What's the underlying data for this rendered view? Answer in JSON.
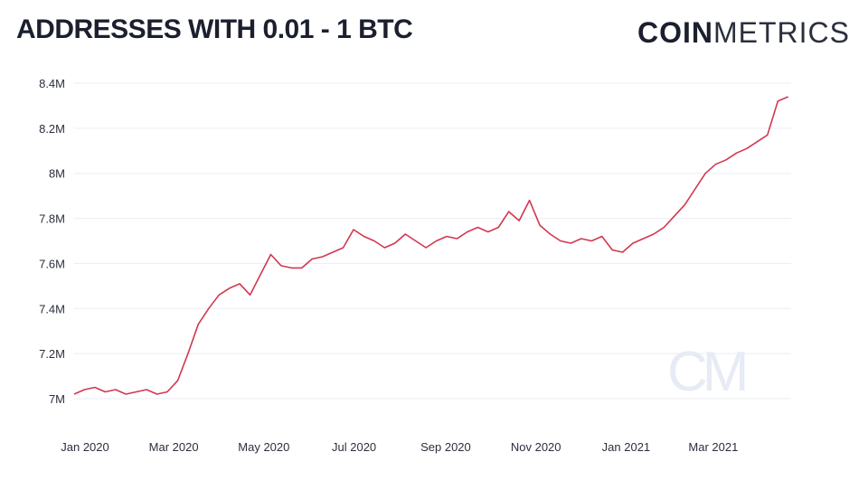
{
  "header": {
    "title": "ADDRESSES WITH 0.01 - 1 BTC",
    "brand_bold": "COIN",
    "brand_light": "METRICS",
    "watermark": "CM"
  },
  "colors": {
    "line": "#d23750",
    "grid": "#ebedf2",
    "text": "#1b1f2e"
  },
  "chart_data": {
    "type": "line",
    "title": "ADDRESSES WITH 0.01 - 1 BTC",
    "xlabel": "",
    "ylabel": "",
    "ylim": [
      6.98,
      8.4
    ],
    "yticks": [
      7.0,
      7.2,
      7.4,
      7.6,
      7.8,
      8.0,
      8.2,
      8.4
    ],
    "ytick_labels": [
      "7M",
      "7.2M",
      "7.4M",
      "7.6M",
      "7.8M",
      "8M",
      "8.2M",
      "8.4M"
    ],
    "xticks": [
      "2020-01-01",
      "2020-03-01",
      "2020-05-01",
      "2020-07-01",
      "2020-09-01",
      "2020-11-01",
      "2021-01-01",
      "2021-03-01"
    ],
    "xtick_labels": [
      "Jan 2020",
      "Mar 2020",
      "May 2020",
      "Jul 2020",
      "Sep 2020",
      "Nov 2020",
      "Jan 2021",
      "Mar 2021"
    ],
    "grid": true,
    "series": [
      {
        "x": [
          "2020-01-01",
          "2020-01-08",
          "2020-01-15",
          "2020-01-22",
          "2020-01-29",
          "2020-02-05",
          "2020-02-12",
          "2020-02-19",
          "2020-02-26",
          "2020-03-04",
          "2020-03-11",
          "2020-03-18",
          "2020-03-25",
          "2020-04-01",
          "2020-04-08",
          "2020-04-15",
          "2020-04-22",
          "2020-04-29",
          "2020-05-06",
          "2020-05-13",
          "2020-05-20",
          "2020-05-27",
          "2020-06-03",
          "2020-06-10",
          "2020-06-17",
          "2020-06-24",
          "2020-07-01",
          "2020-07-08",
          "2020-07-15",
          "2020-07-22",
          "2020-07-29",
          "2020-08-05",
          "2020-08-12",
          "2020-08-19",
          "2020-08-26",
          "2020-09-02",
          "2020-09-09",
          "2020-09-16",
          "2020-09-23",
          "2020-09-30",
          "2020-10-07",
          "2020-10-14",
          "2020-10-21",
          "2020-10-28",
          "2020-11-04",
          "2020-11-11",
          "2020-11-18",
          "2020-11-25",
          "2020-12-02",
          "2020-12-09",
          "2020-12-16",
          "2020-12-23",
          "2020-12-30",
          "2021-01-06",
          "2021-01-13",
          "2021-01-20",
          "2021-01-27",
          "2021-02-03",
          "2021-02-10",
          "2021-02-17",
          "2021-02-24",
          "2021-03-03",
          "2021-03-10",
          "2021-03-17",
          "2021-03-24",
          "2021-03-31",
          "2021-04-07",
          "2021-04-14",
          "2021-04-21",
          "2021-04-28"
        ],
        "values": [
          7.02,
          7.04,
          7.05,
          7.03,
          7.04,
          7.02,
          7.03,
          7.04,
          7.02,
          7.03,
          7.08,
          7.2,
          7.33,
          7.4,
          7.46,
          7.49,
          7.51,
          7.46,
          7.55,
          7.64,
          7.59,
          7.58,
          7.58,
          7.62,
          7.63,
          7.65,
          7.67,
          7.75,
          7.72,
          7.7,
          7.67,
          7.69,
          7.73,
          7.7,
          7.67,
          7.7,
          7.72,
          7.71,
          7.74,
          7.76,
          7.74,
          7.76,
          7.83,
          7.79,
          7.88,
          7.77,
          7.73,
          7.7,
          7.69,
          7.71,
          7.7,
          7.72,
          7.66,
          7.65,
          7.69,
          7.71,
          7.73,
          7.76,
          7.81,
          7.86,
          7.93,
          8.0,
          8.04,
          8.06,
          8.09,
          8.11,
          8.14,
          8.17,
          8.32,
          8.34
        ]
      }
    ]
  }
}
